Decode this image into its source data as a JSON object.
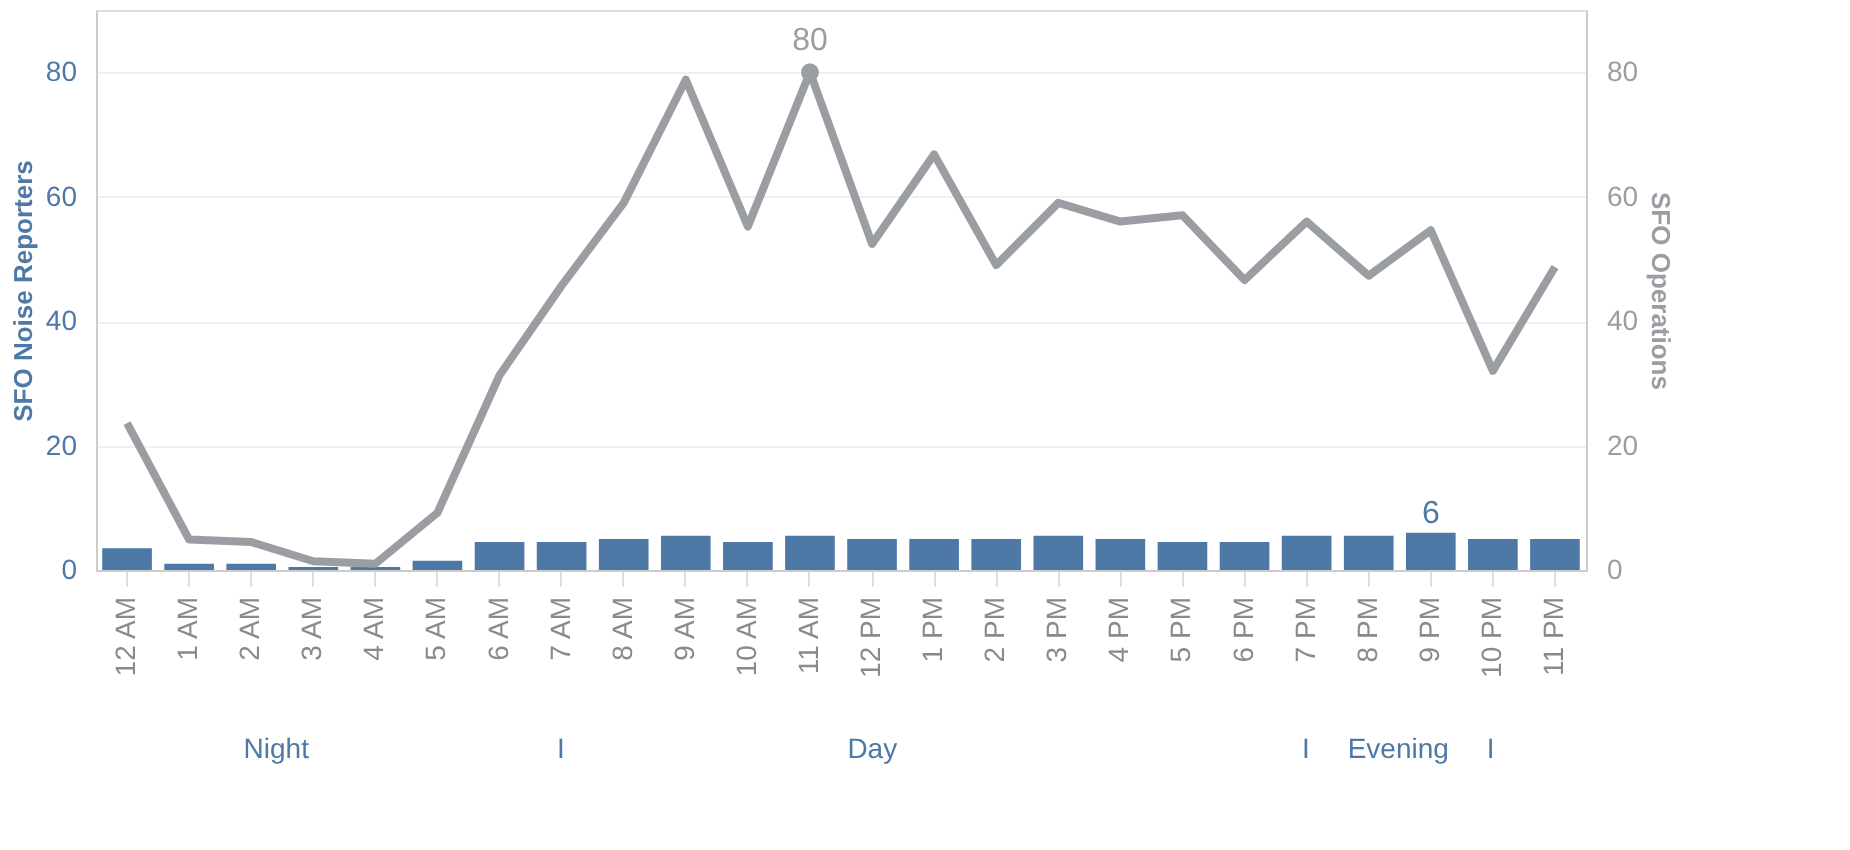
{
  "chart_data": {
    "type": "bar",
    "categories": [
      "12 AM",
      "1 AM",
      "2 AM",
      "3 AM",
      "4 AM",
      "5 AM",
      "6 AM",
      "7 AM",
      "8 AM",
      "9 AM",
      "10 AM",
      "11 AM",
      "12 PM",
      "1 PM",
      "2 PM",
      "3 PM",
      "4 PM",
      "5 PM",
      "6 PM",
      "7 PM",
      "8 PM",
      "9 PM",
      "10 PM",
      "11 PM"
    ],
    "ylabel": "SFO Noise Reporters",
    "y2label": "SFO Operations",
    "series": [
      {
        "name": null,
        "color": "#4e79a7",
        "values": [
          3.5,
          1,
          1,
          0.5,
          0.5,
          1.5,
          4.5,
          4.5,
          5,
          5.5,
          4.5,
          5.5,
          5,
          5,
          5,
          5.5,
          5,
          4.5,
          4.5,
          5.5,
          5.5,
          6,
          5,
          5
        ],
        "value_labels": [
          null,
          null,
          null,
          null,
          null,
          null,
          null,
          null,
          null,
          null,
          null,
          null,
          null,
          null,
          null,
          null,
          null,
          null,
          null,
          null,
          null,
          "6",
          null,
          null
        ]
      },
      {
        "name": null,
        "type": "line",
        "axis": "y2",
        "color": "#9a9ea3",
        "values": [
          23.6,
          4.9,
          4.5,
          1.4,
          1,
          9.2,
          31.3,
          45.7,
          59,
          78.8,
          55.2,
          80,
          52.4,
          66.8,
          49,
          59,
          56,
          57,
          46.6,
          56,
          47.3,
          54.6,
          32,
          48.7
        ],
        "value_labels": [
          null,
          null,
          null,
          null,
          null,
          null,
          null,
          null,
          null,
          null,
          null,
          "80",
          null,
          null,
          null,
          null,
          null,
          null,
          null,
          null,
          null,
          null,
          null,
          null
        ]
      }
    ],
    "ylim": [
      0,
      90
    ],
    "yticks": [
      0,
      20,
      40,
      60,
      80
    ],
    "y2lim": [
      0,
      90
    ],
    "y2ticks": [
      0,
      20,
      40,
      60,
      80
    ],
    "grid": "y",
    "line_style": "solid",
    "annotations": [
      "Night",
      "I",
      "Day",
      "I",
      "Evening",
      "I"
    ]
  }
}
